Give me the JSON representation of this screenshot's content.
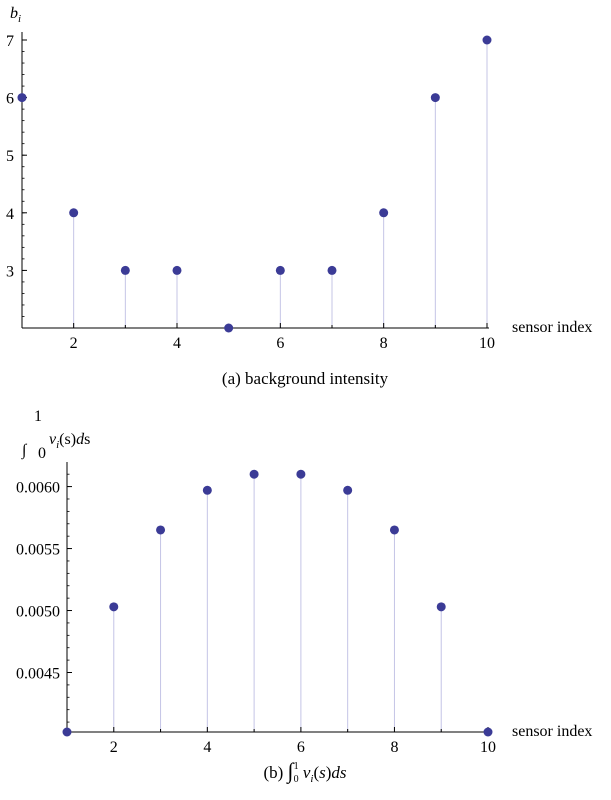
{
  "chart_data": [
    {
      "type": "scatter",
      "style": "stem",
      "xlabel": "sensor index",
      "ylabel": "b_i",
      "caption": "(a) background intensity",
      "x_ticks": [
        "2",
        "4",
        "6",
        "8",
        "10"
      ],
      "y_ticks": [
        "3",
        "4",
        "5",
        "6",
        "7"
      ],
      "xlim": [
        1,
        10
      ],
      "ylim": [
        2,
        7
      ],
      "x": [
        1,
        2,
        3,
        4,
        5,
        6,
        7,
        8,
        9,
        10
      ],
      "y": [
        6,
        4,
        3,
        3,
        2,
        3,
        3,
        4,
        6,
        7
      ],
      "color": "#3b3b96",
      "stem_color": "#c4c4e6"
    },
    {
      "type": "scatter",
      "style": "stem",
      "xlabel": "sensor index",
      "ylabel": "∫₀¹ νᵢ(s) ds",
      "caption": "(b) ∫₀¹ νᵢ(s) ds",
      "x_ticks": [
        "2",
        "4",
        "6",
        "8",
        "10"
      ],
      "y_ticks": [
        "0.0045",
        "0.0050",
        "0.0055",
        "0.0060"
      ],
      "xlim": [
        1,
        10
      ],
      "ylim": [
        0.00402,
        0.00615
      ],
      "x": [
        1,
        2,
        3,
        4,
        5,
        6,
        7,
        8,
        9,
        10
      ],
      "y": [
        0.00402,
        0.00503,
        0.00565,
        0.00597,
        0.0061,
        0.0061,
        0.00597,
        0.00565,
        0.00503,
        0.00402
      ],
      "color": "#3b3b96",
      "stem_color": "#c4c4e6"
    }
  ]
}
